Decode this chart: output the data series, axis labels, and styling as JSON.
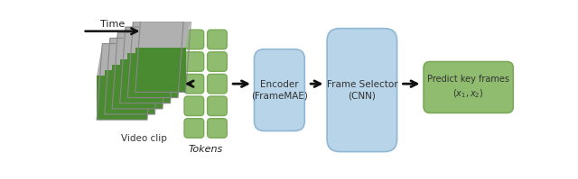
{
  "bg_color": "#ffffff",
  "video_clip_label": "Video clip",
  "time_label": "Time",
  "tokens_label": "Tokens",
  "encoder_label": "Encoder\n(FrameMAE)",
  "frame_selector_label": "Frame Selector\n(CNN)",
  "predict_label": "Predict key frames\n$(x_1, x_2)$",
  "green_fill": "#8fbc6e",
  "green_edge": "#7aaa58",
  "blue_fill": "#b8d4e8",
  "blue_edge": "#90b8d4",
  "arrow_color": "#111111",
  "token_rows": 5,
  "token_cols": 2,
  "frame_sky_color": "#b0b0b0",
  "frame_grass_color": "#4a8a30",
  "frame_border_color": "#888888"
}
